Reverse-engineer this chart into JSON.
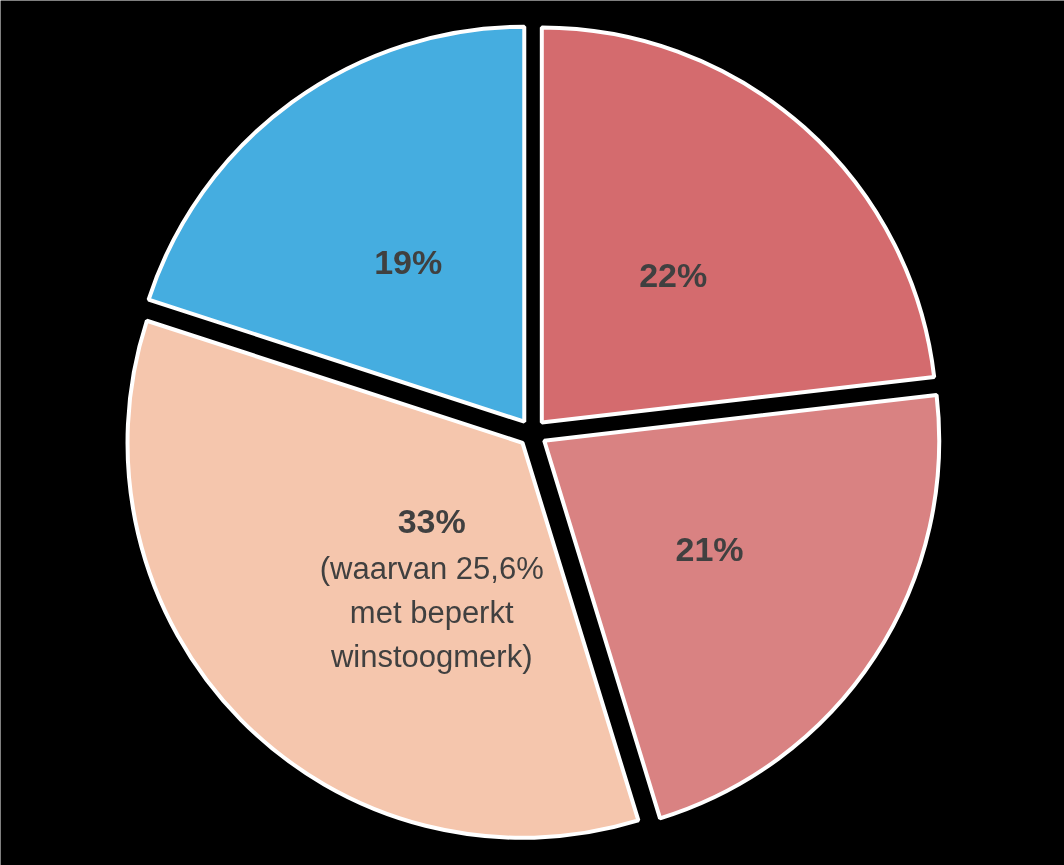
{
  "chart_data": {
    "type": "pie",
    "categories": [
      null,
      null,
      null,
      null
    ],
    "values": [
      22,
      21,
      33,
      19
    ],
    "colors": [
      "#d46b6e",
      "#d98282",
      "#f5c6ad",
      "#45ade0"
    ],
    "value_labels": [
      "22%",
      "21%",
      "33%",
      "19%"
    ],
    "annotations": [
      "(waarvan 25,6%\nmet beperkt\nwinstoogmerk)"
    ]
  }
}
